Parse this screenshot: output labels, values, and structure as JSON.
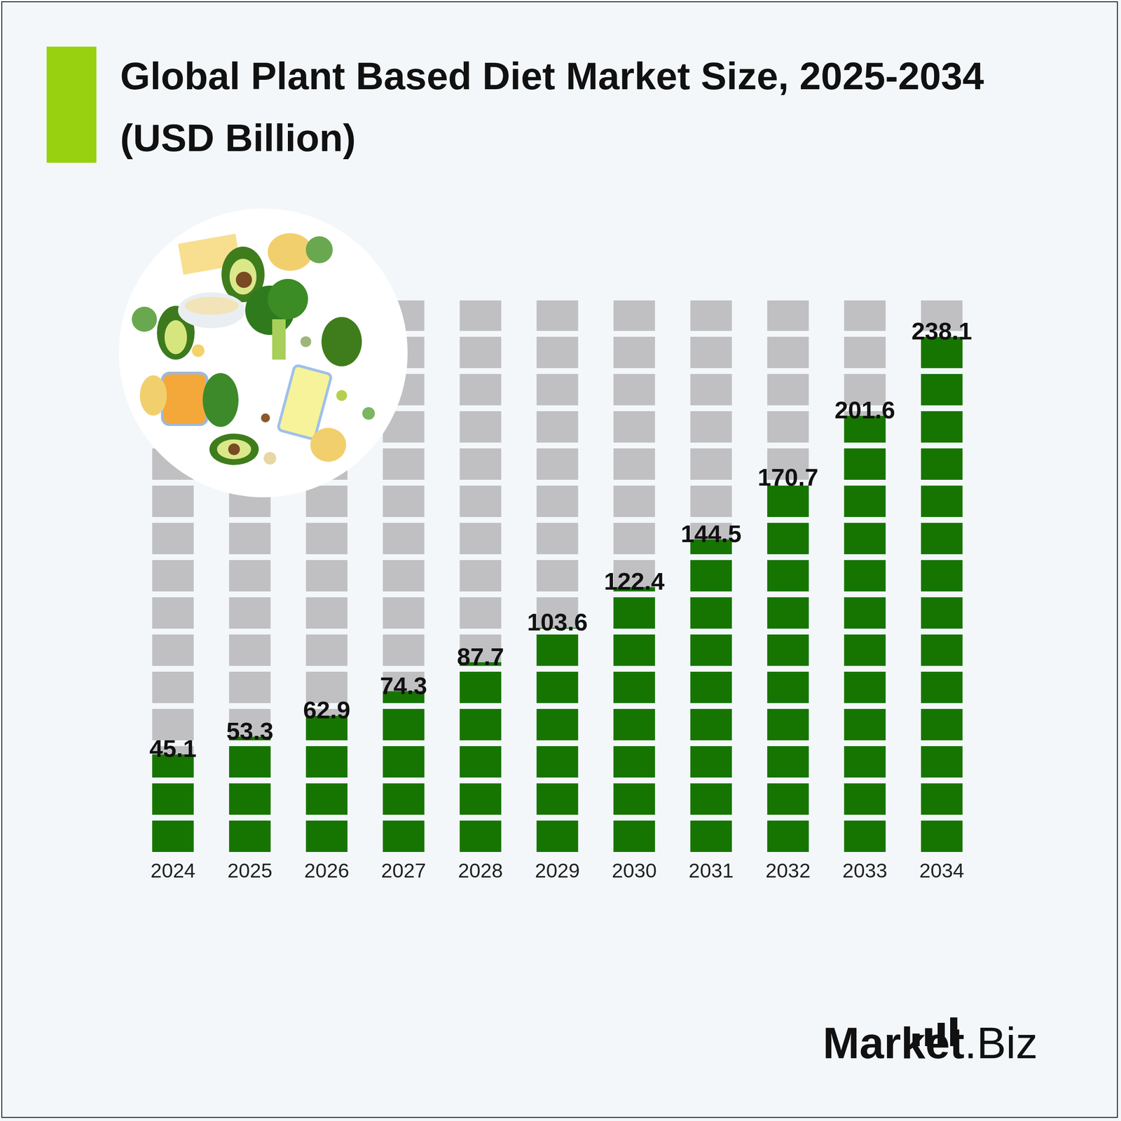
{
  "chart_data": {
    "type": "bar",
    "title": "Global Plant Based Diet Market Size, 2025-2034 (USD Billion)",
    "categories": [
      "2024",
      "2025",
      "2026",
      "2027",
      "2028",
      "2029",
      "2030",
      "2031",
      "2032",
      "2033",
      "2034"
    ],
    "values": [
      45.1,
      53.3,
      62.9,
      74.3,
      87.7,
      103.6,
      122.4,
      144.5,
      170.7,
      201.6,
      238.1
    ],
    "color": "#167500",
    "ylim": [
      0,
      255
    ],
    "yticks": [
      0,
      255
    ],
    "grid": false,
    "data_labels": true,
    "tick_labels": "x",
    "annotations": [
      "Market.Biz"
    ]
  }
}
